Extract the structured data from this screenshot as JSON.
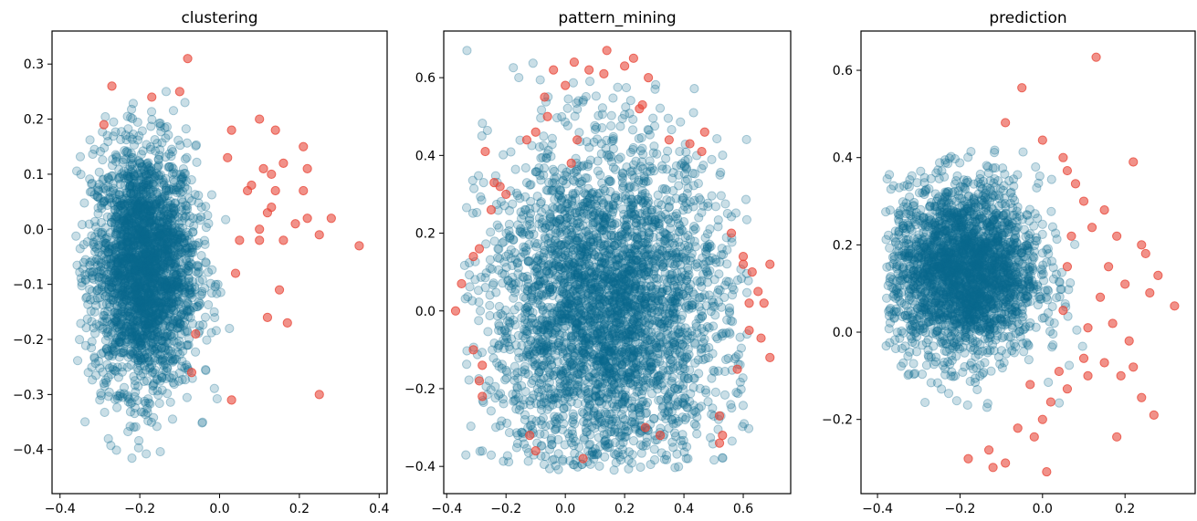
{
  "chart_data": [
    {
      "type": "scatter",
      "title": "clustering",
      "xlabel": "",
      "ylabel": "",
      "xlim": [
        -0.42,
        0.42
      ],
      "ylim": [
        -0.48,
        0.36
      ],
      "xticks": [
        -0.4,
        -0.2,
        0.0,
        0.2,
        0.4
      ],
      "xtick_labels": [
        "−0.4",
        "−0.2",
        "0.0",
        "0.2",
        "0.4"
      ],
      "yticks": [
        -0.4,
        -0.3,
        -0.2,
        -0.1,
        0.0,
        0.1,
        0.2,
        0.3
      ],
      "ytick_labels": [
        "−0.4",
        "−0.3",
        "−0.2",
        "−0.1",
        "0.0",
        "0.1",
        "0.2",
        "0.3"
      ],
      "grid": false,
      "series": [
        {
          "color": "#0b6a8f",
          "opacity": 0.22,
          "count": 2600,
          "center": [
            -0.19,
            -0.07
          ],
          "spread": [
            0.065,
            0.11
          ],
          "x_range": [
            -0.36,
            0.2
          ],
          "y_range": [
            -0.43,
            0.28
          ]
        },
        {
          "color": "#e8483b",
          "opacity": 0.6,
          "points": [
            [
              -0.08,
              0.31
            ],
            [
              -0.27,
              0.26
            ],
            [
              -0.29,
              0.19
            ],
            [
              -0.1,
              0.25
            ],
            [
              -0.17,
              0.24
            ],
            [
              0.03,
              0.18
            ],
            [
              0.02,
              0.13
            ],
            [
              0.1,
              0.2
            ],
            [
              0.14,
              0.18
            ],
            [
              0.16,
              0.12
            ],
            [
              0.21,
              0.15
            ],
            [
              0.22,
              0.11
            ],
            [
              0.13,
              0.1
            ],
            [
              0.11,
              0.11
            ],
            [
              0.08,
              0.08
            ],
            [
              0.07,
              0.07
            ],
            [
              0.14,
              0.07
            ],
            [
              0.12,
              0.03
            ],
            [
              0.21,
              0.07
            ],
            [
              0.13,
              0.04
            ],
            [
              0.1,
              0.0
            ],
            [
              0.16,
              -0.02
            ],
            [
              0.22,
              0.02
            ],
            [
              0.28,
              0.02
            ],
            [
              0.25,
              -0.01
            ],
            [
              0.35,
              -0.03
            ],
            [
              0.19,
              0.01
            ],
            [
              0.05,
              -0.02
            ],
            [
              0.1,
              -0.02
            ],
            [
              0.15,
              -0.11
            ],
            [
              0.12,
              -0.16
            ],
            [
              0.17,
              -0.17
            ],
            [
              0.04,
              -0.08
            ],
            [
              -0.07,
              -0.26
            ],
            [
              0.25,
              -0.3
            ],
            [
              0.03,
              -0.31
            ],
            [
              -0.06,
              -0.19
            ]
          ]
        }
      ]
    },
    {
      "type": "scatter",
      "title": "pattern_mining",
      "xlabel": "",
      "ylabel": "",
      "xlim": [
        -0.41,
        0.76
      ],
      "ylim": [
        -0.47,
        0.72
      ],
      "xticks": [
        -0.4,
        -0.2,
        0.0,
        0.2,
        0.4,
        0.6
      ],
      "xtick_labels": [
        "−0.4",
        "−0.2",
        "0.0",
        "0.2",
        "0.4",
        "0.6"
      ],
      "yticks": [
        -0.4,
        -0.2,
        0.0,
        0.2,
        0.4,
        0.6
      ],
      "ytick_labels": [
        "−0.4",
        "−0.2",
        "0.0",
        "0.2",
        "0.4",
        "0.6"
      ],
      "grid": false,
      "series": [
        {
          "color": "#0b6a8f",
          "opacity": 0.22,
          "count": 3400,
          "center": [
            0.14,
            0.0
          ],
          "spread": [
            0.2,
            0.21
          ],
          "x_range": [
            -0.34,
            0.62
          ],
          "y_range": [
            -0.41,
            0.67
          ]
        },
        {
          "color": "#e8483b",
          "opacity": 0.6,
          "points": [
            [
              0.14,
              0.67
            ],
            [
              0.23,
              0.65
            ],
            [
              0.2,
              0.63
            ],
            [
              0.03,
              0.64
            ],
            [
              -0.04,
              0.62
            ],
            [
              0.08,
              0.62
            ],
            [
              0.0,
              0.58
            ],
            [
              0.28,
              0.6
            ],
            [
              0.13,
              0.61
            ],
            [
              -0.07,
              0.55
            ],
            [
              -0.06,
              0.5
            ],
            [
              0.25,
              0.52
            ],
            [
              0.26,
              0.53
            ],
            [
              -0.1,
              0.46
            ],
            [
              -0.13,
              0.44
            ],
            [
              0.35,
              0.44
            ],
            [
              0.42,
              0.43
            ],
            [
              0.47,
              0.46
            ],
            [
              -0.27,
              0.41
            ],
            [
              0.04,
              0.44
            ],
            [
              0.46,
              0.41
            ],
            [
              -0.22,
              0.32
            ],
            [
              -0.24,
              0.33
            ],
            [
              -0.2,
              0.3
            ],
            [
              -0.25,
              0.26
            ],
            [
              -0.29,
              0.16
            ],
            [
              -0.31,
              0.14
            ],
            [
              -0.35,
              0.07
            ],
            [
              -0.37,
              0.0
            ],
            [
              -0.31,
              -0.1
            ],
            [
              -0.29,
              -0.18
            ],
            [
              -0.28,
              -0.22
            ],
            [
              0.6,
              0.12
            ],
            [
              0.63,
              0.1
            ],
            [
              0.65,
              0.05
            ],
            [
              0.69,
              0.12
            ],
            [
              0.62,
              -0.05
            ],
            [
              0.66,
              -0.07
            ],
            [
              0.69,
              -0.12
            ],
            [
              0.58,
              -0.15
            ],
            [
              0.52,
              -0.27
            ],
            [
              0.53,
              -0.32
            ],
            [
              0.52,
              -0.34
            ],
            [
              -0.12,
              -0.32
            ],
            [
              -0.1,
              -0.36
            ],
            [
              0.06,
              -0.38
            ],
            [
              0.32,
              -0.32
            ],
            [
              0.27,
              -0.3
            ],
            [
              0.56,
              0.2
            ],
            [
              0.6,
              0.14
            ],
            [
              0.62,
              0.02
            ],
            [
              0.67,
              0.02
            ],
            [
              -0.28,
              -0.14
            ],
            [
              0.02,
              0.38
            ]
          ]
        }
      ]
    },
    {
      "type": "scatter",
      "title": "prediction",
      "xlabel": "",
      "ylabel": "",
      "xlim": [
        -0.44,
        0.37
      ],
      "ylim": [
        -0.37,
        0.69
      ],
      "xticks": [
        -0.4,
        -0.2,
        0.0,
        0.2
      ],
      "xtick_labels": [
        "−0.4",
        "−0.2",
        "0.0",
        "0.2"
      ],
      "yticks": [
        -0.2,
        0.0,
        0.2,
        0.4,
        0.6
      ],
      "ytick_labels": [
        "−0.2",
        "0.0",
        "0.2",
        "0.4",
        "0.6"
      ],
      "grid": false,
      "series": [
        {
          "color": "#0b6a8f",
          "opacity": 0.22,
          "count": 2500,
          "center": [
            -0.19,
            0.14
          ],
          "spread": [
            0.09,
            0.1
          ],
          "x_range": [
            -0.38,
            0.1
          ],
          "y_range": [
            -0.3,
            0.45
          ]
        },
        {
          "color": "#e8483b",
          "opacity": 0.6,
          "points": [
            [
              0.13,
              0.63
            ],
            [
              -0.05,
              0.56
            ],
            [
              -0.09,
              0.48
            ],
            [
              0.0,
              0.44
            ],
            [
              0.05,
              0.4
            ],
            [
              0.06,
              0.37
            ],
            [
              0.22,
              0.39
            ],
            [
              0.1,
              0.3
            ],
            [
              0.15,
              0.28
            ],
            [
              0.12,
              0.24
            ],
            [
              0.18,
              0.22
            ],
            [
              0.24,
              0.2
            ],
            [
              0.25,
              0.18
            ],
            [
              0.28,
              0.13
            ],
            [
              0.26,
              0.09
            ],
            [
              0.32,
              0.06
            ],
            [
              0.07,
              0.22
            ],
            [
              0.06,
              0.15
            ],
            [
              0.16,
              0.15
            ],
            [
              0.2,
              0.11
            ],
            [
              0.14,
              0.08
            ],
            [
              0.05,
              0.05
            ],
            [
              0.11,
              0.01
            ],
            [
              0.17,
              0.02
            ],
            [
              0.21,
              -0.02
            ],
            [
              0.15,
              -0.07
            ],
            [
              0.19,
              -0.1
            ],
            [
              0.22,
              -0.08
            ],
            [
              0.11,
              -0.1
            ],
            [
              0.06,
              -0.13
            ],
            [
              0.02,
              -0.16
            ],
            [
              0.0,
              -0.2
            ],
            [
              -0.02,
              -0.24
            ],
            [
              -0.06,
              -0.22
            ],
            [
              -0.09,
              -0.3
            ],
            [
              -0.12,
              -0.31
            ],
            [
              -0.13,
              -0.27
            ],
            [
              0.01,
              -0.32
            ],
            [
              0.18,
              -0.24
            ],
            [
              0.27,
              -0.19
            ],
            [
              0.24,
              -0.15
            ],
            [
              0.1,
              -0.06
            ],
            [
              -0.03,
              -0.12
            ],
            [
              0.04,
              -0.09
            ],
            [
              0.08,
              0.34
            ],
            [
              -0.18,
              -0.29
            ]
          ]
        }
      ]
    }
  ]
}
